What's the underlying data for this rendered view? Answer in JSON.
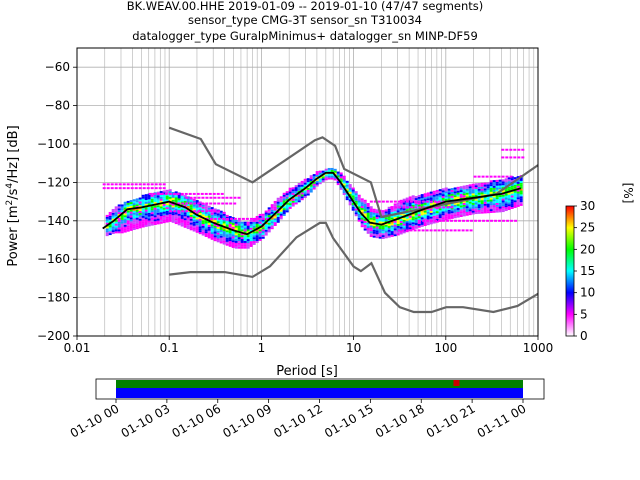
{
  "title_lines": [
    "BK.WEAV.00.HHE   2019-01-09 -- 2019-01-10  (47/47 segments)",
    "sensor_type CMG-3T sensor_sn T310034",
    "datalogger_type GuralpMinimus+ datalogger_sn MINP-DF59"
  ],
  "chart_data": {
    "type": "heatmap",
    "subtype": "probabilistic-power-spectral-density",
    "xlabel": "Period [s]",
    "ylabel_parts": {
      "pre": "Power [m",
      "sup1": "2",
      "mid1": "/s",
      "sup2": "4",
      "post": "/Hz] [dB]"
    },
    "xscale": "log",
    "xlim": [
      0.01,
      1000
    ],
    "ylim": [
      -200,
      -50
    ],
    "x_ticks": [
      0.01,
      0.1,
      1,
      10,
      100,
      1000
    ],
    "x_tick_labels": [
      "0.01",
      "0.1",
      "1",
      "10",
      "100",
      "1000"
    ],
    "y_ticks": [
      -200,
      -180,
      -160,
      -140,
      -120,
      -100,
      -80,
      -60
    ],
    "y_tick_labels": [
      "−200",
      "−180",
      "−160",
      "−140",
      "−120",
      "−100",
      "−80",
      "−60"
    ],
    "grid": true,
    "colorbar": {
      "label": "[%]",
      "min": 0,
      "max": 30,
      "ticks": [
        "0",
        "5",
        "10",
        "15",
        "20",
        "25",
        "30"
      ],
      "colormap": [
        "#ffffff",
        "#ff00ff",
        "#0000ff",
        "#00ffff",
        "#00ff00",
        "#ffff00",
        "#ff0000"
      ]
    },
    "mean_curve": [
      [
        0.019,
        -144
      ],
      [
        0.025,
        -140
      ],
      [
        0.035,
        -134
      ],
      [
        0.05,
        -133
      ],
      [
        0.08,
        -131
      ],
      [
        0.1,
        -130
      ],
      [
        0.15,
        -133
      ],
      [
        0.2,
        -137
      ],
      [
        0.3,
        -141
      ],
      [
        0.5,
        -145
      ],
      [
        0.7,
        -147
      ],
      [
        1,
        -143
      ],
      [
        1.5,
        -135
      ],
      [
        2,
        -129
      ],
      [
        3,
        -123
      ],
      [
        4,
        -118
      ],
      [
        5,
        -115
      ],
      [
        6,
        -115
      ],
      [
        7,
        -119
      ],
      [
        9,
        -127
      ],
      [
        12,
        -136
      ],
      [
        15,
        -141
      ],
      [
        20,
        -142
      ],
      [
        30,
        -139
      ],
      [
        50,
        -135
      ],
      [
        100,
        -130
      ],
      [
        200,
        -128
      ],
      [
        400,
        -126
      ],
      [
        650,
        -123
      ]
    ],
    "nhnm": [
      [
        0.1,
        -91.5
      ],
      [
        0.22,
        -97.4
      ],
      [
        0.32,
        -110.5
      ],
      [
        0.8,
        -120
      ],
      [
        3.8,
        -98
      ],
      [
        4.6,
        -96.5
      ],
      [
        6.3,
        -101
      ],
      [
        7.9,
        -113
      ],
      [
        15.4,
        -120
      ],
      [
        20,
        -138
      ],
      [
        354.8,
        -126
      ],
      [
        1000,
        -111
      ]
    ],
    "nlnm": [
      [
        0.1,
        -168
      ],
      [
        0.17,
        -166.7
      ],
      [
        0.4,
        -166.7
      ],
      [
        0.8,
        -169.2
      ],
      [
        1.24,
        -163.7
      ],
      [
        2.4,
        -148.6
      ],
      [
        4.3,
        -141.1
      ],
      [
        5,
        -141.1
      ],
      [
        6,
        -149
      ],
      [
        10,
        -163.8
      ],
      [
        12,
        -166.2
      ],
      [
        15.6,
        -162.1
      ],
      [
        21.9,
        -177.5
      ],
      [
        31.6,
        -185
      ],
      [
        45,
        -187.5
      ],
      [
        70,
        -187.5
      ],
      [
        101,
        -185
      ],
      [
        154,
        -185
      ],
      [
        328,
        -187.5
      ],
      [
        600,
        -184.4
      ],
      [
        1000,
        -178
      ]
    ],
    "spread_band": [
      [
        0.019,
        -148,
        -138
      ],
      [
        0.025,
        -146,
        -133
      ],
      [
        0.03,
        -146,
        -131
      ],
      [
        0.05,
        -143,
        -127
      ],
      [
        0.1,
        -140,
        -124
      ],
      [
        0.2,
        -146,
        -130
      ],
      [
        0.3,
        -150,
        -133
      ],
      [
        0.5,
        -154,
        -139
      ],
      [
        0.7,
        -154,
        -141
      ],
      [
        1,
        -149,
        -136
      ],
      [
        1.5,
        -140,
        -128
      ],
      [
        2,
        -133,
        -123
      ],
      [
        3,
        -127,
        -118
      ],
      [
        4,
        -121,
        -114
      ],
      [
        5,
        -118,
        -113
      ],
      [
        6,
        -118,
        -113
      ],
      [
        7,
        -123,
        -115
      ],
      [
        9,
        -132,
        -121
      ],
      [
        12,
        -143,
        -128
      ],
      [
        15,
        -148,
        -133
      ],
      [
        20,
        -149,
        -135
      ],
      [
        30,
        -147,
        -130
      ],
      [
        50,
        -143,
        -126
      ],
      [
        100,
        -139,
        -123
      ],
      [
        200,
        -136,
        -121
      ],
      [
        400,
        -135,
        -118
      ],
      [
        700,
        -131,
        -116
      ]
    ],
    "sparse_mode_lines": [
      [
        0.019,
        0.09,
        -121
      ],
      [
        0.019,
        0.09,
        -123
      ],
      [
        0.1,
        0.5,
        -131
      ],
      [
        0.1,
        0.35,
        -135
      ],
      [
        0.06,
        0.4,
        -126
      ],
      [
        0.25,
        1.2,
        -139
      ],
      [
        0.15,
        0.6,
        -128
      ],
      [
        15,
        100,
        -130
      ],
      [
        25,
        120,
        -133
      ],
      [
        50,
        600,
        -140
      ],
      [
        30,
        200,
        -145
      ],
      [
        400,
        700,
        -103
      ],
      [
        400,
        700,
        -107
      ],
      [
        200,
        500,
        -117
      ]
    ],
    "timeline": {
      "tick_labels": [
        "01-10 00",
        "01-10 03",
        "01-10 06",
        "01-10 09",
        "01-10 12",
        "01-10 15",
        "01-10 18",
        "01-10 21",
        "01-11 00"
      ],
      "coverage_start_hour": 0,
      "coverage_end_hour": 24,
      "segments": [
        {
          "name": "data",
          "color": "#0000ff"
        },
        {
          "name": "ppsd",
          "color": "#008000"
        }
      ],
      "highlight_hour": 19.9
    }
  }
}
